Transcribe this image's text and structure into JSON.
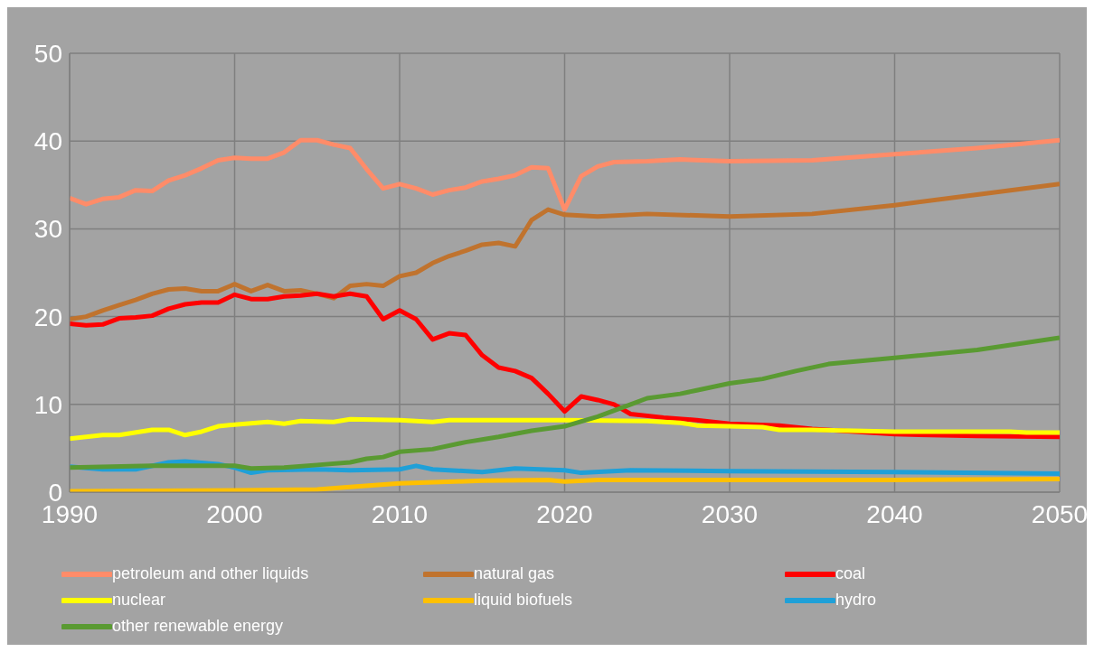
{
  "chart_data": {
    "type": "line",
    "xlim": [
      1990,
      2050
    ],
    "xticks": [
      1990,
      2000,
      2010,
      2020,
      2030,
      2040,
      2050
    ],
    "ylim": [
      0,
      50
    ],
    "yticks": [
      0,
      10,
      20,
      30,
      40,
      50
    ],
    "grid": true,
    "legend": "bottom",
    "marker": "none",
    "line_style": "solid",
    "series": [
      {
        "name": "petroleum and other liquids",
        "color": "#ff8c69",
        "x": [
          1990,
          1991,
          1992,
          1993,
          1994,
          1995,
          1996,
          1997,
          1998,
          1999,
          2000,
          2001,
          2002,
          2003,
          2004,
          2005,
          2006,
          2007,
          2008,
          2009,
          2010,
          2011,
          2012,
          2013,
          2014,
          2015,
          2016,
          2017,
          2018,
          2019,
          2020,
          2021,
          2022,
          2023,
          2025,
          2027,
          2030,
          2035,
          2040,
          2045,
          2050
        ],
        "values": [
          33.5,
          32.8,
          33.4,
          33.6,
          34.4,
          34.3,
          35.5,
          36.1,
          36.9,
          37.8,
          38.1,
          38,
          38,
          38.7,
          40.1,
          40.1,
          39.6,
          39.2,
          36.8,
          34.6,
          35.1,
          34.6,
          33.9,
          34.4,
          34.7,
          35.4,
          35.7,
          36.1,
          37,
          36.9,
          32.2,
          36,
          37.1,
          37.6,
          37.7,
          37.9,
          37.7,
          37.8,
          38.5,
          39.2,
          40.1
        ]
      },
      {
        "name": "natural gas",
        "color": "#c0732e",
        "x": [
          1990,
          1991,
          1992,
          1993,
          1994,
          1995,
          1996,
          1997,
          1998,
          1999,
          2000,
          2001,
          2002,
          2003,
          2004,
          2005,
          2006,
          2007,
          2008,
          2009,
          2010,
          2011,
          2012,
          2013,
          2014,
          2015,
          2016,
          2017,
          2018,
          2019,
          2020,
          2022,
          2025,
          2030,
          2035,
          2040,
          2045,
          2050
        ],
        "values": [
          19.7,
          20,
          20.7,
          21.3,
          21.9,
          22.6,
          23.1,
          23.2,
          22.9,
          22.9,
          23.7,
          22.9,
          23.6,
          22.9,
          23,
          22.6,
          22.1,
          23.5,
          23.7,
          23.5,
          24.6,
          25,
          26.1,
          26.9,
          27.5,
          28.2,
          28.4,
          28,
          31,
          32.2,
          31.6,
          31.4,
          31.7,
          31.4,
          31.7,
          32.7,
          33.9,
          35.1
        ]
      },
      {
        "name": "coal",
        "color": "#ff0000",
        "x": [
          1990,
          1991,
          1992,
          1993,
          1994,
          1995,
          1996,
          1997,
          1998,
          1999,
          2000,
          2001,
          2002,
          2003,
          2004,
          2005,
          2006,
          2007,
          2008,
          2009,
          2010,
          2011,
          2012,
          2013,
          2014,
          2015,
          2016,
          2017,
          2018,
          2019,
          2020,
          2021,
          2022,
          2023,
          2024,
          2026,
          2028,
          2030,
          2033,
          2035,
          2040,
          2045,
          2050
        ],
        "values": [
          19.2,
          19,
          19.1,
          19.8,
          19.9,
          20.1,
          20.9,
          21.4,
          21.6,
          21.6,
          22.5,
          22,
          22,
          22.3,
          22.4,
          22.6,
          22.3,
          22.6,
          22.3,
          19.7,
          20.7,
          19.7,
          17.4,
          18.1,
          17.9,
          15.6,
          14.2,
          13.8,
          13,
          11.2,
          9.2,
          10.9,
          10.5,
          10,
          8.9,
          8.5,
          8.2,
          7.8,
          7.6,
          7.2,
          6.6,
          6.4,
          6.3
        ]
      },
      {
        "name": "nuclear",
        "color": "#ffff00",
        "x": [
          1990,
          1992,
          1993,
          1995,
          1996,
          1997,
          1998,
          1999,
          2000,
          2002,
          2003,
          2004,
          2006,
          2007,
          2010,
          2012,
          2013,
          2015,
          2020,
          2025,
          2027,
          2028,
          2030,
          2032,
          2033,
          2035,
          2040,
          2045,
          2047,
          2048,
          2050
        ],
        "values": [
          6.1,
          6.5,
          6.5,
          7.1,
          7.1,
          6.5,
          6.9,
          7.5,
          7.7,
          8,
          7.8,
          8.1,
          8,
          8.3,
          8.2,
          8,
          8.2,
          8.2,
          8.2,
          8.1,
          7.9,
          7.6,
          7.5,
          7.4,
          7.1,
          7.1,
          6.9,
          6.9,
          6.9,
          6.8,
          6.8
        ]
      },
      {
        "name": "liquid biofuels",
        "color": "#ffc000",
        "x": [
          1990,
          2000,
          2005,
          2007,
          2010,
          2015,
          2019,
          2020,
          2022,
          2030,
          2040,
          2050
        ],
        "values": [
          0.1,
          0.2,
          0.3,
          0.6,
          1,
          1.3,
          1.4,
          1.2,
          1.4,
          1.4,
          1.4,
          1.5
        ]
      },
      {
        "name": "hydro",
        "color": "#1fa0d8",
        "x": [
          1990,
          1992,
          1994,
          1996,
          1997,
          1999,
          2000,
          2001,
          2002,
          2005,
          2007,
          2010,
          2011,
          2012,
          2015,
          2017,
          2020,
          2021,
          2024,
          2030,
          2040,
          2050
        ],
        "values": [
          2.9,
          2.6,
          2.6,
          3.4,
          3.5,
          3.2,
          2.8,
          2.2,
          2.5,
          2.6,
          2.5,
          2.6,
          3,
          2.6,
          2.3,
          2.7,
          2.5,
          2.2,
          2.5,
          2.4,
          2.3,
          2.1
        ]
      },
      {
        "name": "other renewable energy",
        "color": "#5a9a32",
        "x": [
          1990,
          1995,
          2000,
          2001,
          2003,
          2005,
          2007,
          2008,
          2009,
          2010,
          2012,
          2014,
          2016,
          2018,
          2020,
          2022,
          2024,
          2025,
          2027,
          2028,
          2030,
          2032,
          2034,
          2036,
          2040,
          2045,
          2050
        ],
        "values": [
          2.8,
          3,
          3,
          2.7,
          2.8,
          3.1,
          3.4,
          3.8,
          4,
          4.6,
          4.9,
          5.7,
          6.3,
          7,
          7.5,
          8.6,
          10,
          10.7,
          11.2,
          11.6,
          12.4,
          12.9,
          13.8,
          14.6,
          15.3,
          16.2,
          17.6
        ]
      }
    ]
  }
}
